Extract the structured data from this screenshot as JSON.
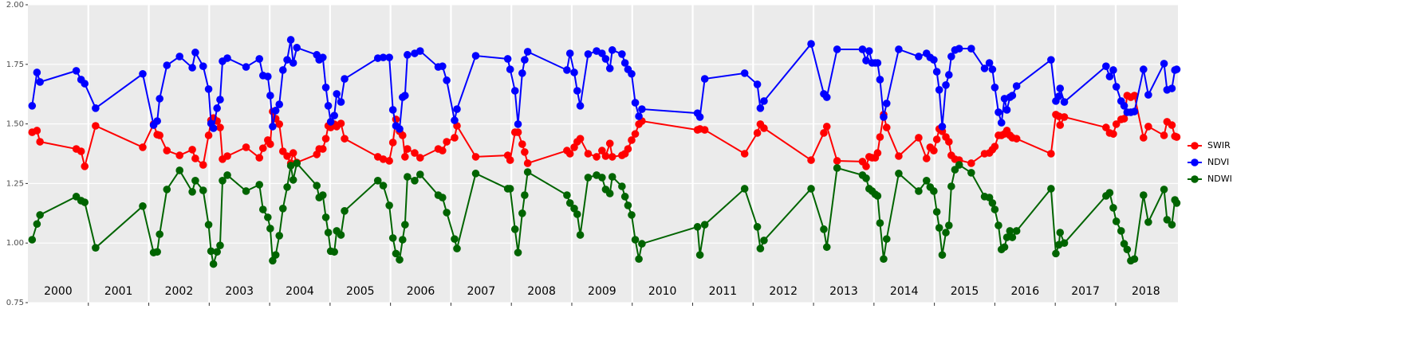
{
  "chart_data": {
    "type": "line",
    "x": [
      2000.07,
      2000.15,
      2000.2,
      2000.8,
      2000.88,
      2000.94,
      2001.12,
      2001.9,
      2002.08,
      2002.14,
      2002.18,
      2002.3,
      2002.51,
      2002.72,
      2002.77,
      2002.9,
      2002.99,
      2003.03,
      2003.07,
      2003.13,
      2003.18,
      2003.22,
      2003.3,
      2003.61,
      2003.83,
      2003.89,
      2003.97,
      2004.01,
      2004.05,
      2004.1,
      2004.16,
      2004.22,
      2004.29,
      2004.35,
      2004.39,
      2004.45,
      2004.78,
      2004.82,
      2004.88,
      2004.93,
      2004.97,
      2005.01,
      2005.07,
      2005.11,
      2005.18,
      2005.24,
      2005.79,
      2005.88,
      2005.98,
      2006.04,
      2006.09,
      2006.15,
      2006.2,
      2006.24,
      2006.28,
      2006.4,
      2006.49,
      2006.79,
      2006.86,
      2006.93,
      2007.06,
      2007.1,
      2007.41,
      2007.94,
      2007.98,
      2008.06,
      2008.11,
      2008.18,
      2008.22,
      2008.27,
      2008.92,
      2008.97,
      2009.04,
      2009.09,
      2009.14,
      2009.27,
      2009.41,
      2009.5,
      2009.56,
      2009.63,
      2009.67,
      2009.83,
      2009.88,
      2009.93,
      2009.99,
      2010.05,
      2010.11,
      2010.16,
      2011.08,
      2011.12,
      2011.2,
      2011.86,
      2012.07,
      2012.12,
      2012.18,
      2012.96,
      2013.17,
      2013.22,
      2013.39,
      2013.81,
      2013.87,
      2013.92,
      2013.97,
      2014.02,
      2014.06,
      2014.1,
      2014.16,
      2014.21,
      2014.41,
      2014.74,
      2014.87,
      2014.93,
      2014.99,
      2015.04,
      2015.08,
      2015.13,
      2015.19,
      2015.24,
      2015.28,
      2015.34,
      2015.41,
      2015.61,
      2015.83,
      2015.91,
      2015.96,
      2016.0,
      2016.06,
      2016.11,
      2016.16,
      2016.2,
      2016.25,
      2016.29,
      2016.36,
      2016.93,
      2017.01,
      2017.06,
      2017.08,
      2017.15,
      2017.84,
      2017.9,
      2017.96,
      2018.01,
      2018.09,
      2018.14,
      2018.19,
      2018.25,
      2018.31,
      2018.46,
      2018.54,
      2018.8,
      2018.85,
      2018.93,
      2018.98,
      2019.01
    ],
    "series": [
      {
        "name": "SWIR",
        "color": "#ff0000",
        "values": [
          1.465,
          1.472,
          1.425,
          1.395,
          1.385,
          1.322,
          1.492,
          1.402,
          1.499,
          1.455,
          1.452,
          1.388,
          1.368,
          1.392,
          1.355,
          1.328,
          1.452,
          1.515,
          1.525,
          1.512,
          1.485,
          1.352,
          1.365,
          1.402,
          1.358,
          1.398,
          1.432,
          1.415,
          1.552,
          1.522,
          1.499,
          1.385,
          1.365,
          1.335,
          1.378,
          1.338,
          1.372,
          1.395,
          1.395,
          1.438,
          1.492,
          1.485,
          1.499,
          1.489,
          1.502,
          1.438,
          1.362,
          1.352,
          1.345,
          1.422,
          1.519,
          1.469,
          1.452,
          1.362,
          1.395,
          1.378,
          1.358,
          1.395,
          1.388,
          1.425,
          1.442,
          1.492,
          1.362,
          1.368,
          1.348,
          1.465,
          1.465,
          1.415,
          1.382,
          1.335,
          1.388,
          1.375,
          1.402,
          1.425,
          1.438,
          1.375,
          1.362,
          1.388,
          1.365,
          1.418,
          1.362,
          1.368,
          1.375,
          1.395,
          1.432,
          1.458,
          1.499,
          1.512,
          1.475,
          1.479,
          1.475,
          1.375,
          1.462,
          1.499,
          1.482,
          1.348,
          1.462,
          1.489,
          1.345,
          1.342,
          1.322,
          1.362,
          1.358,
          1.358,
          1.378,
          1.445,
          1.539,
          1.485,
          1.365,
          1.442,
          1.355,
          1.402,
          1.388,
          1.435,
          1.479,
          1.469,
          1.445,
          1.425,
          1.368,
          1.352,
          1.348,
          1.335,
          1.375,
          1.378,
          1.392,
          1.405,
          1.452,
          1.452,
          1.458,
          1.472,
          1.452,
          1.442,
          1.438,
          1.375,
          1.539,
          1.532,
          1.495,
          1.529,
          1.485,
          1.462,
          1.458,
          1.499,
          1.519,
          1.522,
          1.619,
          1.612,
          1.619,
          1.442,
          1.489,
          1.452,
          1.509,
          1.495,
          1.448,
          1.445
        ]
      },
      {
        "name": "NDVI",
        "color": "#0000ff",
        "values": [
          1.576,
          1.716,
          1.676,
          1.723,
          1.686,
          1.669,
          1.566,
          1.71,
          1.495,
          1.512,
          1.606,
          1.746,
          1.783,
          1.736,
          1.8,
          1.742,
          1.646,
          1.502,
          1.482,
          1.566,
          1.602,
          1.763,
          1.776,
          1.739,
          1.773,
          1.703,
          1.699,
          1.619,
          1.489,
          1.556,
          1.582,
          1.726,
          1.769,
          1.853,
          1.756,
          1.82,
          1.79,
          1.769,
          1.779,
          1.653,
          1.576,
          1.509,
          1.535,
          1.626,
          1.592,
          1.689,
          1.776,
          1.779,
          1.779,
          1.559,
          1.492,
          1.479,
          1.612,
          1.619,
          1.79,
          1.796,
          1.806,
          1.739,
          1.742,
          1.683,
          1.515,
          1.562,
          1.786,
          1.773,
          1.729,
          1.639,
          1.499,
          1.713,
          1.769,
          1.803,
          1.726,
          1.796,
          1.716,
          1.639,
          1.576,
          1.793,
          1.806,
          1.796,
          1.773,
          1.733,
          1.81,
          1.793,
          1.756,
          1.729,
          1.71,
          1.589,
          1.532,
          1.562,
          1.545,
          1.529,
          1.689,
          1.713,
          1.666,
          1.566,
          1.596,
          1.836,
          1.626,
          1.612,
          1.813,
          1.813,
          1.766,
          1.806,
          1.756,
          1.756,
          1.756,
          1.686,
          1.529,
          1.586,
          1.813,
          1.783,
          1.796,
          1.779,
          1.769,
          1.719,
          1.643,
          1.489,
          1.663,
          1.706,
          1.783,
          1.81,
          1.816,
          1.816,
          1.733,
          1.756,
          1.729,
          1.653,
          1.549,
          1.505,
          1.606,
          1.559,
          1.612,
          1.619,
          1.659,
          1.769,
          1.596,
          1.616,
          1.649,
          1.592,
          1.742,
          1.699,
          1.726,
          1.656,
          1.596,
          1.576,
          1.549,
          1.549,
          1.552,
          1.729,
          1.622,
          1.753,
          1.643,
          1.649,
          1.726,
          1.729
        ]
      },
      {
        "name": "NDWI",
        "color": "#006400",
        "values": [
          1.014,
          1.08,
          1.118,
          1.195,
          1.178,
          1.171,
          0.98,
          1.155,
          0.96,
          0.963,
          1.037,
          1.225,
          1.305,
          1.215,
          1.262,
          1.221,
          1.077,
          0.966,
          0.912,
          0.963,
          0.99,
          1.262,
          1.285,
          1.218,
          1.245,
          1.141,
          1.108,
          1.061,
          0.926,
          0.95,
          1.031,
          1.145,
          1.235,
          1.325,
          1.265,
          1.335,
          1.241,
          1.191,
          1.201,
          1.108,
          1.044,
          0.966,
          0.963,
          1.051,
          1.034,
          1.135,
          1.262,
          1.241,
          1.158,
          1.021,
          0.956,
          0.93,
          1.014,
          1.077,
          1.278,
          1.262,
          1.288,
          1.201,
          1.191,
          1.128,
          1.017,
          0.977,
          1.292,
          1.228,
          1.228,
          1.058,
          0.96,
          1.125,
          1.201,
          1.298,
          1.201,
          1.168,
          1.145,
          1.121,
          1.034,
          1.275,
          1.285,
          1.275,
          1.225,
          1.208,
          1.278,
          1.238,
          1.195,
          1.158,
          1.118,
          1.014,
          0.933,
          0.997,
          1.068,
          0.95,
          1.077,
          1.228,
          1.068,
          0.977,
          1.011,
          1.228,
          1.058,
          0.983,
          1.315,
          1.285,
          1.272,
          1.228,
          1.218,
          1.205,
          1.198,
          1.084,
          0.933,
          1.017,
          1.292,
          1.218,
          1.262,
          1.235,
          1.218,
          1.131,
          1.064,
          0.95,
          1.044,
          1.074,
          1.238,
          1.308,
          1.328,
          1.295,
          1.195,
          1.191,
          1.168,
          1.141,
          1.074,
          0.973,
          0.983,
          1.024,
          1.051,
          1.024,
          1.051,
          1.228,
          0.956,
          0.993,
          1.044,
          1.0,
          1.198,
          1.211,
          1.148,
          1.091,
          1.051,
          0.997,
          0.973,
          0.926,
          0.933,
          1.201,
          1.088,
          1.225,
          1.098,
          1.077,
          1.181,
          1.168
        ]
      }
    ],
    "xlim": [
      2000,
      2019.03
    ],
    "xticks": [
      {
        "value": 2000.5,
        "label": "2000"
      },
      {
        "value": 2001.5,
        "label": "2001"
      },
      {
        "value": 2002.5,
        "label": "2002"
      },
      {
        "value": 2003.5,
        "label": "2003"
      },
      {
        "value": 2004.5,
        "label": "2004"
      },
      {
        "value": 2005.5,
        "label": "2005"
      },
      {
        "value": 2006.5,
        "label": "2006"
      },
      {
        "value": 2007.5,
        "label": "2007"
      },
      {
        "value": 2008.5,
        "label": "2008"
      },
      {
        "value": 2009.5,
        "label": "2009"
      },
      {
        "value": 2010.5,
        "label": "2010"
      },
      {
        "value": 2011.5,
        "label": "2011"
      },
      {
        "value": 2012.5,
        "label": "2012"
      },
      {
        "value": 2013.5,
        "label": "2013"
      },
      {
        "value": 2014.5,
        "label": "2014"
      },
      {
        "value": 2015.5,
        "label": "2015"
      },
      {
        "value": 2016.5,
        "label": "2016"
      },
      {
        "value": 2017.5,
        "label": "2017"
      },
      {
        "value": 2018.5,
        "label": "2018"
      }
    ],
    "xgrid": [
      2001,
      2002,
      2003,
      2004,
      2005,
      2006,
      2007,
      2008,
      2009,
      2010,
      2011,
      2012,
      2013,
      2014,
      2015,
      2016,
      2017,
      2018
    ],
    "ylim": [
      0.75,
      2
    ],
    "yticks": [
      0.75,
      {
        "value": 1,
        "label": "1.00"
      },
      1.25,
      {
        "value": 1.5,
        "label": "1.50"
      },
      1.75,
      {
        "value": 2,
        "label": "2.00"
      }
    ],
    "grid": true,
    "legend": "right"
  }
}
